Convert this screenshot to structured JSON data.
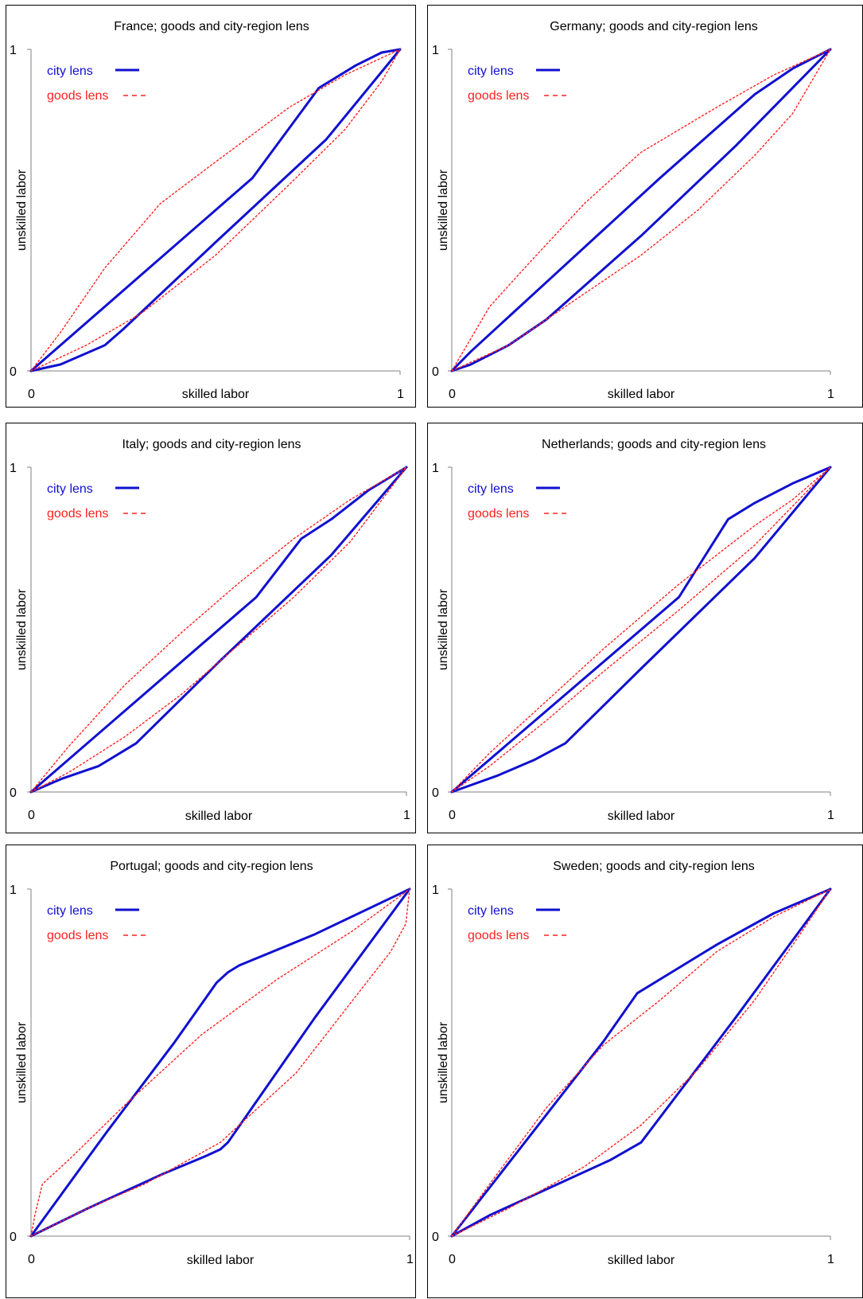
{
  "colors": {
    "city": "#1010d0",
    "goods": "#ff2020",
    "axis": "#808080",
    "frame": "#000000"
  },
  "chart_data": [
    {
      "type": "line",
      "title": "France; goods and city-region lens",
      "xlabel": "skilled labor",
      "ylabel": "unskilled labor",
      "xlim": [
        0,
        1
      ],
      "ylim": [
        0,
        1
      ],
      "x_ticks": [
        "0",
        "1"
      ],
      "y_ticks": [
        "0",
        "1"
      ],
      "legend": [
        "city lens",
        "goods lens"
      ],
      "legend_position": "top-left",
      "series": [
        {
          "name": "city lens",
          "style": "solid",
          "upper": [
            [
              0,
              0
            ],
            [
              0.3,
              0.3
            ],
            [
              0.6,
              0.6
            ],
            [
              0.78,
              0.88
            ],
            [
              0.88,
              0.95
            ],
            [
              0.95,
              0.99
            ],
            [
              1,
              1
            ]
          ],
          "lower": [
            [
              0,
              0
            ],
            [
              0.08,
              0.02
            ],
            [
              0.2,
              0.08
            ],
            [
              0.25,
              0.13
            ],
            [
              0.5,
              0.4
            ],
            [
              0.8,
              0.72
            ],
            [
              1,
              1
            ]
          ]
        },
        {
          "name": "goods lens",
          "style": "dashed",
          "upper": [
            [
              0,
              0
            ],
            [
              0.08,
              0.12
            ],
            [
              0.2,
              0.32
            ],
            [
              0.35,
              0.52
            ],
            [
              0.5,
              0.65
            ],
            [
              0.7,
              0.82
            ],
            [
              0.85,
              0.92
            ],
            [
              1,
              1
            ]
          ],
          "lower": [
            [
              0,
              0
            ],
            [
              0.15,
              0.08
            ],
            [
              0.3,
              0.18
            ],
            [
              0.5,
              0.36
            ],
            [
              0.7,
              0.58
            ],
            [
              0.85,
              0.75
            ],
            [
              0.95,
              0.9
            ],
            [
              1,
              1
            ]
          ]
        }
      ]
    },
    {
      "type": "line",
      "title": "Germany; goods and city-region lens",
      "xlabel": "skilled labor",
      "ylabel": "unskilled labor",
      "xlim": [
        0,
        1
      ],
      "ylim": [
        0,
        1
      ],
      "x_ticks": [
        "0",
        "1"
      ],
      "y_ticks": [
        "0",
        "1"
      ],
      "legend": [
        "city lens",
        "goods lens"
      ],
      "legend_position": "top-left",
      "series": [
        {
          "name": "city lens",
          "style": "solid",
          "upper": [
            [
              0,
              0
            ],
            [
              0.05,
              0.06
            ],
            [
              0.3,
              0.33
            ],
            [
              0.55,
              0.6
            ],
            [
              0.8,
              0.86
            ],
            [
              0.9,
              0.94
            ],
            [
              1,
              1
            ]
          ],
          "lower": [
            [
              0,
              0
            ],
            [
              0.05,
              0.02
            ],
            [
              0.15,
              0.08
            ],
            [
              0.25,
              0.16
            ],
            [
              0.5,
              0.42
            ],
            [
              0.75,
              0.7
            ],
            [
              1,
              1
            ]
          ]
        },
        {
          "name": "goods lens",
          "style": "dashed",
          "upper": [
            [
              0,
              0
            ],
            [
              0.1,
              0.2
            ],
            [
              0.2,
              0.33
            ],
            [
              0.35,
              0.52
            ],
            [
              0.5,
              0.68
            ],
            [
              0.7,
              0.82
            ],
            [
              0.85,
              0.92
            ],
            [
              1,
              1
            ]
          ],
          "lower": [
            [
              0,
              0
            ],
            [
              0.15,
              0.08
            ],
            [
              0.35,
              0.24
            ],
            [
              0.5,
              0.36
            ],
            [
              0.65,
              0.5
            ],
            [
              0.8,
              0.67
            ],
            [
              0.9,
              0.8
            ],
            [
              1,
              1
            ]
          ]
        }
      ]
    },
    {
      "type": "line",
      "title": "Italy; goods and city-region lens",
      "xlabel": "skilled labor",
      "ylabel": "unskilled labor",
      "xlim": [
        0,
        1
      ],
      "ylim": [
        0,
        1
      ],
      "x_ticks": [
        "0",
        "1"
      ],
      "y_ticks": [
        "0",
        "1"
      ],
      "legend": [
        "city lens",
        "goods lens"
      ],
      "legend_position": "top-left",
      "series": [
        {
          "name": "city lens",
          "style": "solid",
          "upper": [
            [
              0,
              0
            ],
            [
              0.3,
              0.3
            ],
            [
              0.6,
              0.6
            ],
            [
              0.72,
              0.78
            ],
            [
              0.8,
              0.84
            ],
            [
              0.9,
              0.93
            ],
            [
              1,
              1
            ]
          ],
          "lower": [
            [
              0,
              0
            ],
            [
              0.08,
              0.04
            ],
            [
              0.18,
              0.08
            ],
            [
              0.28,
              0.15
            ],
            [
              0.5,
              0.4
            ],
            [
              0.8,
              0.73
            ],
            [
              1,
              1
            ]
          ]
        },
        {
          "name": "goods lens",
          "style": "dashed",
          "upper": [
            [
              0,
              0
            ],
            [
              0.1,
              0.14
            ],
            [
              0.25,
              0.33
            ],
            [
              0.4,
              0.49
            ],
            [
              0.55,
              0.64
            ],
            [
              0.7,
              0.78
            ],
            [
              0.85,
              0.9
            ],
            [
              1,
              1
            ]
          ],
          "lower": [
            [
              0,
              0
            ],
            [
              0.1,
              0.06
            ],
            [
              0.25,
              0.17
            ],
            [
              0.4,
              0.3
            ],
            [
              0.55,
              0.45
            ],
            [
              0.7,
              0.6
            ],
            [
              0.85,
              0.77
            ],
            [
              1,
              1
            ]
          ]
        }
      ]
    },
    {
      "type": "line",
      "title": "Netherlands; goods and city-region lens",
      "xlabel": "skilled labor",
      "ylabel": "unskilled labor",
      "xlim": [
        0,
        1
      ],
      "ylim": [
        0,
        1
      ],
      "x_ticks": [
        "0",
        "1"
      ],
      "y_ticks": [
        "0",
        "1"
      ],
      "legend": [
        "city lens",
        "goods lens"
      ],
      "legend_position": "top-left",
      "series": [
        {
          "name": "city lens",
          "style": "solid",
          "upper": [
            [
              0,
              0
            ],
            [
              0.3,
              0.3
            ],
            [
              0.6,
              0.6
            ],
            [
              0.73,
              0.84
            ],
            [
              0.8,
              0.89
            ],
            [
              0.9,
              0.95
            ],
            [
              1,
              1
            ]
          ],
          "lower": [
            [
              0,
              0
            ],
            [
              0.12,
              0.05
            ],
            [
              0.22,
              0.1
            ],
            [
              0.3,
              0.15
            ],
            [
              0.5,
              0.38
            ],
            [
              0.8,
              0.72
            ],
            [
              1,
              1
            ]
          ]
        },
        {
          "name": "goods lens",
          "style": "dashed",
          "upper": [
            [
              0,
              0
            ],
            [
              0.1,
              0.12
            ],
            [
              0.25,
              0.28
            ],
            [
              0.4,
              0.44
            ],
            [
              0.6,
              0.64
            ],
            [
              0.8,
              0.82
            ],
            [
              0.9,
              0.9
            ],
            [
              1,
              1
            ]
          ],
          "lower": [
            [
              0,
              0
            ],
            [
              0.1,
              0.08
            ],
            [
              0.25,
              0.22
            ],
            [
              0.4,
              0.37
            ],
            [
              0.6,
              0.56
            ],
            [
              0.8,
              0.76
            ],
            [
              0.9,
              0.88
            ],
            [
              1,
              1
            ]
          ]
        }
      ]
    },
    {
      "type": "line",
      "title": "Portugal; goods and city-region lens",
      "xlabel": "skilled labor",
      "ylabel": "unskilled labor",
      "xlim": [
        0,
        1
      ],
      "ylim": [
        0,
        1
      ],
      "x_ticks": [
        "0",
        "1"
      ],
      "y_ticks": [
        "0",
        "1"
      ],
      "legend": [
        "city lens",
        "goods lens"
      ],
      "legend_position": "top-left",
      "series": [
        {
          "name": "city lens",
          "style": "solid",
          "upper": [
            [
              0,
              0
            ],
            [
              0.2,
              0.3
            ],
            [
              0.38,
              0.56
            ],
            [
              0.49,
              0.73
            ],
            [
              0.52,
              0.76
            ],
            [
              0.55,
              0.78
            ],
            [
              0.75,
              0.87
            ],
            [
              1,
              1
            ]
          ],
          "lower": [
            [
              0,
              0
            ],
            [
              0.15,
              0.08
            ],
            [
              0.35,
              0.18
            ],
            [
              0.46,
              0.23
            ],
            [
              0.5,
              0.25
            ],
            [
              0.52,
              0.27
            ],
            [
              0.75,
              0.63
            ],
            [
              1,
              1
            ]
          ]
        },
        {
          "name": "goods lens",
          "style": "dashed",
          "upper": [
            [
              0,
              0
            ],
            [
              0.01,
              0.06
            ],
            [
              0.03,
              0.15
            ],
            [
              0.1,
              0.22
            ],
            [
              0.25,
              0.38
            ],
            [
              0.45,
              0.58
            ],
            [
              0.65,
              0.74
            ],
            [
              0.85,
              0.88
            ],
            [
              1,
              1
            ]
          ],
          "lower": [
            [
              0,
              0
            ],
            [
              0.15,
              0.08
            ],
            [
              0.3,
              0.15
            ],
            [
              0.5,
              0.27
            ],
            [
              0.7,
              0.47
            ],
            [
              0.85,
              0.68
            ],
            [
              0.95,
              0.82
            ],
            [
              0.99,
              0.9
            ],
            [
              1,
              1
            ]
          ]
        }
      ]
    },
    {
      "type": "line",
      "title": "Sweden; goods and city-region lens",
      "xlabel": "skilled labor",
      "ylabel": "unskilled labor",
      "xlim": [
        0,
        1
      ],
      "ylim": [
        0,
        1
      ],
      "x_ticks": [
        "0",
        "1"
      ],
      "y_ticks": [
        "0",
        "1"
      ],
      "legend": [
        "city lens",
        "goods lens"
      ],
      "legend_position": "top-left",
      "series": [
        {
          "name": "city lens",
          "style": "solid",
          "upper": [
            [
              0,
              0
            ],
            [
              0.2,
              0.28
            ],
            [
              0.4,
              0.56
            ],
            [
              0.49,
              0.7
            ],
            [
              0.55,
              0.74
            ],
            [
              0.7,
              0.84
            ],
            [
              0.85,
              0.93
            ],
            [
              1,
              1
            ]
          ],
          "lower": [
            [
              0,
              0
            ],
            [
              0.1,
              0.06
            ],
            [
              0.3,
              0.16
            ],
            [
              0.42,
              0.22
            ],
            [
              0.5,
              0.27
            ],
            [
              0.75,
              0.63
            ],
            [
              1,
              1
            ]
          ]
        },
        {
          "name": "goods lens",
          "style": "dashed",
          "upper": [
            [
              0,
              0
            ],
            [
              0.1,
              0.15
            ],
            [
              0.25,
              0.37
            ],
            [
              0.4,
              0.55
            ],
            [
              0.55,
              0.68
            ],
            [
              0.7,
              0.82
            ],
            [
              0.85,
              0.92
            ],
            [
              1,
              1
            ]
          ],
          "lower": [
            [
              0,
              0
            ],
            [
              0.15,
              0.08
            ],
            [
              0.35,
              0.2
            ],
            [
              0.5,
              0.32
            ],
            [
              0.65,
              0.48
            ],
            [
              0.8,
              0.68
            ],
            [
              0.92,
              0.87
            ],
            [
              1,
              1
            ]
          ]
        }
      ]
    }
  ]
}
